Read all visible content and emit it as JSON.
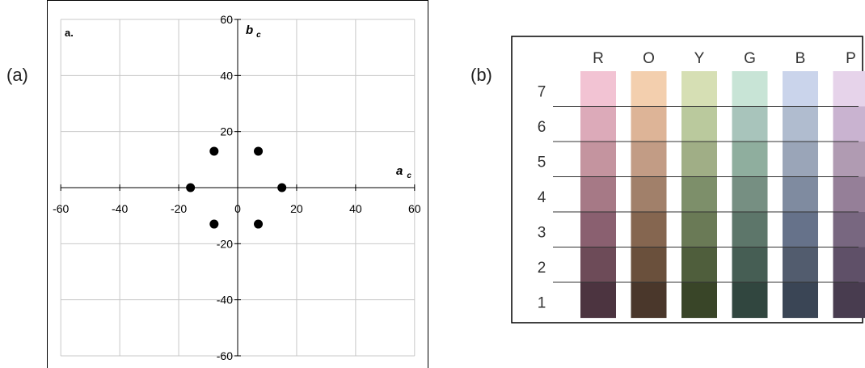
{
  "panels": {
    "a_label": "(a)",
    "b_label": "(b)"
  },
  "chart_data": [
    {
      "type": "scatter",
      "title": "a.",
      "xlabel": "a",
      "xlabel_sub": "c",
      "ylabel": "b",
      "ylabel_sub": "c",
      "xlim": [
        -60,
        60
      ],
      "ylim": [
        -60,
        60
      ],
      "xticks": [
        -60,
        -40,
        -20,
        0,
        20,
        40,
        60
      ],
      "yticks": [
        -60,
        -40,
        -20,
        20,
        40,
        60
      ],
      "grid": true,
      "point_color": "#000000",
      "points": [
        {
          "x": -8,
          "y": 13
        },
        {
          "x": 7,
          "y": 13
        },
        {
          "x": -16,
          "y": 0
        },
        {
          "x": 15,
          "y": 0
        },
        {
          "x": -8,
          "y": -13
        },
        {
          "x": 7,
          "y": -13
        }
      ]
    },
    {
      "type": "heatmap",
      "columns": [
        "R",
        "O",
        "Y",
        "G",
        "B",
        "P"
      ],
      "rows": [
        "7",
        "6",
        "5",
        "4",
        "3",
        "2",
        "1"
      ],
      "colors": [
        [
          "#f2c3d3",
          "#f3cfae",
          "#d6dfb4",
          "#c8e4d6",
          "#cad4eb",
          "#e6d3ea"
        ],
        [
          "#dcaab9",
          "#ddb497",
          "#bac99d",
          "#a8c4bb",
          "#b0bccf",
          "#c9b3d0"
        ],
        [
          "#c4949f",
          "#c29c85",
          "#a0ae86",
          "#8fae9e",
          "#9aa5b8",
          "#b09bb2"
        ],
        [
          "#a67986",
          "#a1806a",
          "#7d8f6a",
          "#768f82",
          "#7f8ba0",
          "#957f98"
        ],
        [
          "#8a6070",
          "#856650",
          "#6a7a56",
          "#5d766a",
          "#66728a",
          "#786780"
        ],
        [
          "#6d4b58",
          "#6a503c",
          "#4f5e3c",
          "#465e54",
          "#525c6e",
          "#5f5068"
        ],
        [
          "#4c3440",
          "#4a372b",
          "#394528",
          "#31463f",
          "#3a4555",
          "#483c4f"
        ]
      ]
    }
  ]
}
